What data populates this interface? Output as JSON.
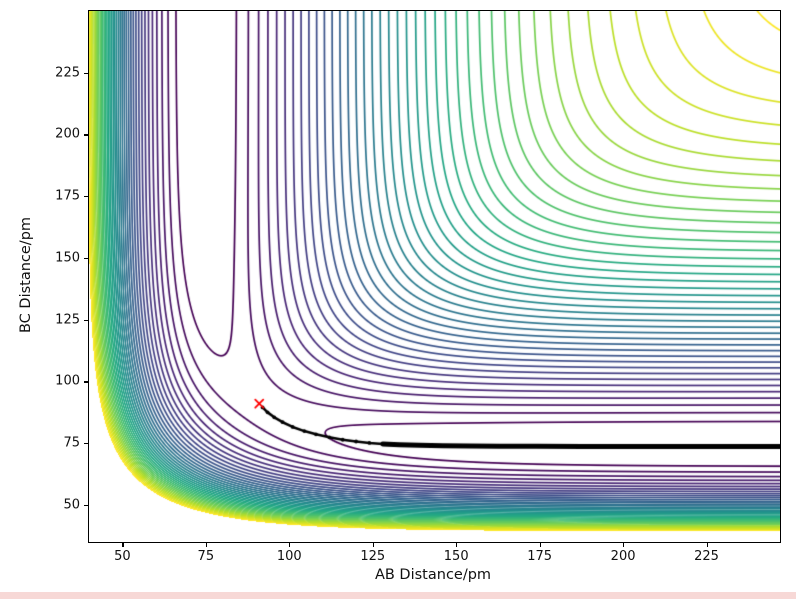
{
  "colors": {
    "trajectory": "#000000",
    "saddle_marker": "#ff0000",
    "bottom_strip": "#f7d8d6",
    "axis": "#000000"
  },
  "chart_data": {
    "type": "contour",
    "title": "",
    "xlabel": "AB Distance/pm",
    "ylabel": "BC Distance/pm",
    "xlim": [
      40,
      247
    ],
    "ylim": [
      35,
      250
    ],
    "x_ticks": [
      50,
      75,
      100,
      125,
      150,
      175,
      200,
      225
    ],
    "y_ticks": [
      50,
      75,
      100,
      125,
      150,
      175,
      200,
      225
    ],
    "grid": false,
    "legend": false,
    "colormap": "viridis",
    "levels": {
      "min_eV": -4.6,
      "max_eV": -0.45,
      "count": 40
    },
    "surface": {
      "model": "LEPS collinear A-B-C potential energy surface",
      "D_eV": 4.7466,
      "beta_per_pm": 0.019417,
      "re_pm": 74.144,
      "sato": 0.1875
    },
    "saddle_marker": {
      "x_pm": 91,
      "y_pm": 91,
      "symbol": "x",
      "color": "#ff0000"
    },
    "trajectory": {
      "color": "#000000",
      "thick_from_x": 128,
      "points": [
        [
          92,
          89.5
        ],
        [
          93.5,
          87.5
        ],
        [
          95.5,
          85.5
        ],
        [
          98,
          83.5
        ],
        [
          101,
          81.6
        ],
        [
          104.5,
          79.9
        ],
        [
          108,
          78.6
        ],
        [
          112,
          77.4
        ],
        [
          116,
          76.4
        ],
        [
          120,
          75.7
        ],
        [
          124,
          75.1
        ],
        [
          128,
          74.7
        ],
        [
          133,
          74.4
        ],
        [
          139,
          74.15
        ],
        [
          146,
          74.0
        ],
        [
          154,
          73.9
        ],
        [
          163,
          73.8
        ],
        [
          174,
          73.75
        ],
        [
          188,
          73.7
        ],
        [
          205,
          73.7
        ],
        [
          225,
          73.7
        ],
        [
          247,
          73.7
        ]
      ]
    }
  }
}
